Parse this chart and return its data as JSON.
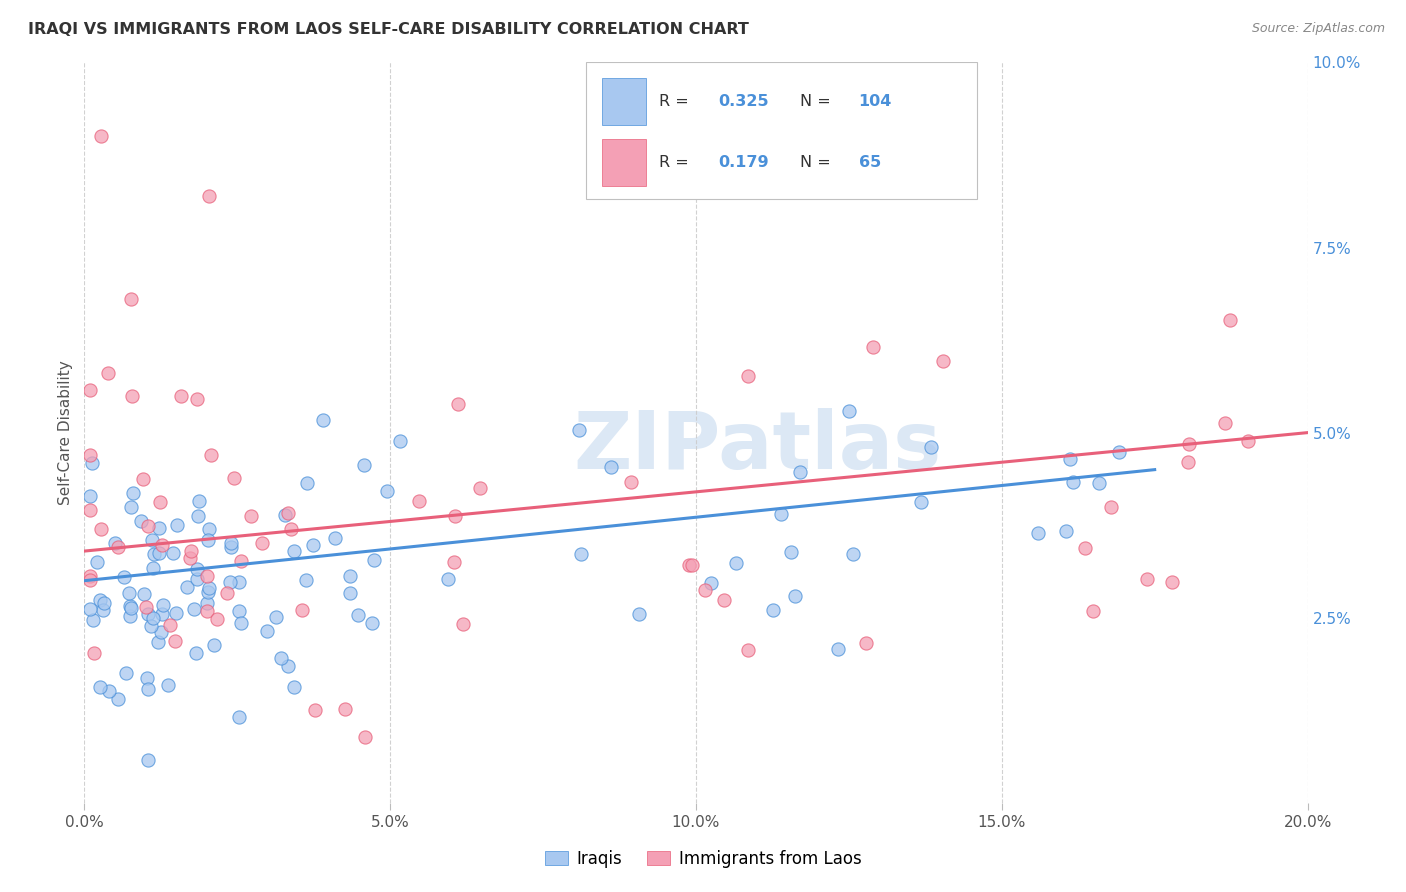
{
  "title": "IRAQI VS IMMIGRANTS FROM LAOS SELF-CARE DISABILITY CORRELATION CHART",
  "source": "Source: ZipAtlas.com",
  "ylabel_label": "Self-Care Disability",
  "xlim": [
    0.0,
    0.2
  ],
  "ylim": [
    0.0,
    0.1
  ],
  "xticks": [
    0.0,
    0.05,
    0.1,
    0.15,
    0.2
  ],
  "xtick_labels": [
    "0.0%",
    "5.0%",
    "10.0%",
    "15.0%",
    "20.0%"
  ],
  "yticks": [
    0.0,
    0.025,
    0.05,
    0.075,
    0.1
  ],
  "ytick_labels": [
    "",
    "2.5%",
    "5.0%",
    "7.5%",
    "10.0%"
  ],
  "legend_R_iraqis": "0.325",
  "legend_N_iraqis": "104",
  "legend_R_laos": "0.179",
  "legend_N_laos": "65",
  "color_iraqis": "#A8C8F0",
  "color_laos": "#F4A0B5",
  "line_color_iraqis": "#4A90D9",
  "line_color_laos": "#E8607A",
  "background_color": "#ffffff",
  "grid_color": "#cccccc",
  "tick_color": "#4A90D9",
  "title_color": "#333333",
  "source_color": "#888888",
  "watermark_color": "#DCE8F5",
  "iraq_trend_start_y": 0.03,
  "iraq_trend_end_y": 0.045,
  "laos_trend_start_y": 0.034,
  "laos_trend_end_y": 0.05
}
